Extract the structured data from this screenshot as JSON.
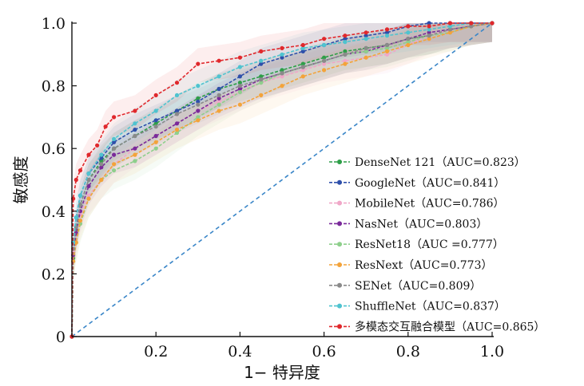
{
  "chart_data": {
    "type": "line",
    "title": "",
    "xlabel": "1− 特异度",
    "ylabel": "敏感度",
    "xlim": [
      0,
      1
    ],
    "ylim": [
      0,
      1
    ],
    "xticks": [
      "0.2",
      "0.4",
      "0.6",
      "0.8",
      "1.0"
    ],
    "yticks": [
      "0",
      "0.2",
      "0.4",
      "0.6",
      "0.8",
      "1.0"
    ],
    "reference_line": {
      "x": [
        0,
        1
      ],
      "y": [
        0,
        1
      ],
      "color": "#3a86c8",
      "style": "dashed"
    },
    "legend_position": "bottom-right",
    "series": [
      {
        "name": "DenseNet 121（AUC=0.823）",
        "color": "#2e9e48",
        "x": [
          0,
          0.003,
          0.01,
          0.02,
          0.04,
          0.07,
          0.1,
          0.15,
          0.2,
          0.25,
          0.3,
          0.35,
          0.4,
          0.45,
          0.5,
          0.55,
          0.6,
          0.65,
          0.7,
          0.75,
          0.8,
          0.85,
          0.9,
          0.95,
          1.0
        ],
        "y": [
          0,
          0.25,
          0.34,
          0.42,
          0.5,
          0.56,
          0.6,
          0.64,
          0.68,
          0.72,
          0.76,
          0.79,
          0.81,
          0.83,
          0.85,
          0.87,
          0.89,
          0.91,
          0.92,
          0.93,
          0.95,
          0.96,
          0.98,
          0.99,
          1.0
        ]
      },
      {
        "name": "GoogleNet（AUC=0.841）",
        "color": "#2e4faa",
        "x": [
          0,
          0.003,
          0.01,
          0.02,
          0.04,
          0.07,
          0.1,
          0.15,
          0.2,
          0.25,
          0.3,
          0.35,
          0.4,
          0.45,
          0.5,
          0.55,
          0.6,
          0.65,
          0.7,
          0.75,
          0.8,
          0.85,
          0.9,
          0.95,
          1.0
        ],
        "y": [
          0,
          0.3,
          0.38,
          0.45,
          0.52,
          0.57,
          0.62,
          0.66,
          0.69,
          0.72,
          0.75,
          0.79,
          0.83,
          0.87,
          0.89,
          0.91,
          0.93,
          0.95,
          0.96,
          0.97,
          0.99,
          1.0,
          1.0,
          1.0,
          1.0
        ]
      },
      {
        "name": "MobileNet（AUC=0.786）",
        "color": "#f0a7c8",
        "x": [
          0,
          0.003,
          0.01,
          0.02,
          0.04,
          0.07,
          0.1,
          0.15,
          0.2,
          0.25,
          0.3,
          0.35,
          0.4,
          0.45,
          0.5,
          0.55,
          0.6,
          0.65,
          0.7,
          0.75,
          0.8,
          0.85,
          0.9,
          0.95,
          1.0
        ],
        "y": [
          0,
          0.27,
          0.33,
          0.39,
          0.45,
          0.5,
          0.55,
          0.6,
          0.64,
          0.68,
          0.72,
          0.75,
          0.78,
          0.81,
          0.83,
          0.85,
          0.87,
          0.88,
          0.89,
          0.9,
          0.93,
          0.96,
          0.98,
          0.99,
          1.0
        ]
      },
      {
        "name": "NasNet（AUC=0.803）",
        "color": "#7a2a9a",
        "x": [
          0,
          0.003,
          0.01,
          0.02,
          0.04,
          0.07,
          0.1,
          0.15,
          0.2,
          0.25,
          0.3,
          0.35,
          0.4,
          0.45,
          0.5,
          0.55,
          0.6,
          0.65,
          0.7,
          0.75,
          0.8,
          0.85,
          0.9,
          0.95,
          1.0
        ],
        "y": [
          0,
          0.26,
          0.33,
          0.4,
          0.48,
          0.54,
          0.58,
          0.6,
          0.64,
          0.68,
          0.72,
          0.76,
          0.79,
          0.82,
          0.84,
          0.86,
          0.88,
          0.9,
          0.91,
          0.93,
          0.95,
          0.97,
          0.98,
          0.99,
          1.0
        ]
      },
      {
        "name": "ResNet18（AUC =0.777）",
        "color": "#8ecf8c",
        "x": [
          0,
          0.003,
          0.01,
          0.02,
          0.04,
          0.07,
          0.1,
          0.15,
          0.2,
          0.25,
          0.3,
          0.35,
          0.4,
          0.45,
          0.5,
          0.55,
          0.6,
          0.65,
          0.7,
          0.75,
          0.8,
          0.85,
          0.9,
          0.95,
          1.0
        ],
        "y": [
          0,
          0.24,
          0.3,
          0.36,
          0.44,
          0.5,
          0.53,
          0.56,
          0.6,
          0.65,
          0.7,
          0.74,
          0.78,
          0.81,
          0.84,
          0.86,
          0.88,
          0.9,
          0.91,
          0.92,
          0.94,
          0.96,
          0.97,
          0.99,
          1.0
        ]
      },
      {
        "name": "ResNext（AUC=0.773）",
        "color": "#f3a33a",
        "x": [
          0,
          0.003,
          0.01,
          0.02,
          0.04,
          0.07,
          0.1,
          0.15,
          0.2,
          0.25,
          0.3,
          0.35,
          0.4,
          0.45,
          0.5,
          0.55,
          0.6,
          0.65,
          0.7,
          0.75,
          0.8,
          0.85,
          0.9,
          0.95,
          1.0
        ],
        "y": [
          0,
          0.24,
          0.3,
          0.37,
          0.44,
          0.5,
          0.55,
          0.58,
          0.62,
          0.66,
          0.69,
          0.72,
          0.74,
          0.77,
          0.8,
          0.83,
          0.85,
          0.87,
          0.89,
          0.91,
          0.93,
          0.95,
          0.97,
          0.99,
          1.0
        ]
      },
      {
        "name": "SENet（AUC=0.809）",
        "color": "#8a8a8a",
        "x": [
          0,
          0.003,
          0.01,
          0.02,
          0.04,
          0.07,
          0.1,
          0.15,
          0.2,
          0.25,
          0.3,
          0.35,
          0.4,
          0.45,
          0.5,
          0.55,
          0.6,
          0.65,
          0.7,
          0.75,
          0.8,
          0.85,
          0.9,
          0.95,
          1.0
        ],
        "y": [
          0,
          0.28,
          0.35,
          0.42,
          0.5,
          0.55,
          0.6,
          0.64,
          0.67,
          0.71,
          0.74,
          0.77,
          0.8,
          0.82,
          0.84,
          0.86,
          0.88,
          0.9,
          0.92,
          0.93,
          0.95,
          0.96,
          0.98,
          0.99,
          1.0
        ]
      },
      {
        "name": "ShuffleNet（AUC=0.837）",
        "color": "#4fc3cf",
        "x": [
          0,
          0.003,
          0.01,
          0.02,
          0.04,
          0.07,
          0.1,
          0.15,
          0.2,
          0.25,
          0.3,
          0.35,
          0.4,
          0.45,
          0.5,
          0.55,
          0.6,
          0.65,
          0.7,
          0.75,
          0.8,
          0.85,
          0.9,
          0.95,
          1.0
        ],
        "y": [
          0,
          0.3,
          0.38,
          0.45,
          0.52,
          0.58,
          0.63,
          0.68,
          0.72,
          0.77,
          0.8,
          0.83,
          0.86,
          0.88,
          0.9,
          0.92,
          0.93,
          0.94,
          0.95,
          0.96,
          0.97,
          0.98,
          0.99,
          1.0,
          1.0
        ]
      },
      {
        "name": "多模态交互融合模型（AUC=0.865）",
        "color": "#e0282c",
        "x": [
          0,
          0.003,
          0.01,
          0.02,
          0.04,
          0.06,
          0.08,
          0.1,
          0.15,
          0.2,
          0.25,
          0.3,
          0.35,
          0.4,
          0.45,
          0.5,
          0.55,
          0.6,
          0.65,
          0.7,
          0.75,
          0.8,
          0.85,
          0.9,
          0.95,
          1.0
        ],
        "y": [
          0,
          0.44,
          0.5,
          0.53,
          0.58,
          0.61,
          0.67,
          0.7,
          0.72,
          0.77,
          0.81,
          0.87,
          0.88,
          0.89,
          0.91,
          0.92,
          0.93,
          0.95,
          0.96,
          0.97,
          0.98,
          0.99,
          0.99,
          1.0,
          1.0,
          1.0
        ]
      }
    ]
  }
}
